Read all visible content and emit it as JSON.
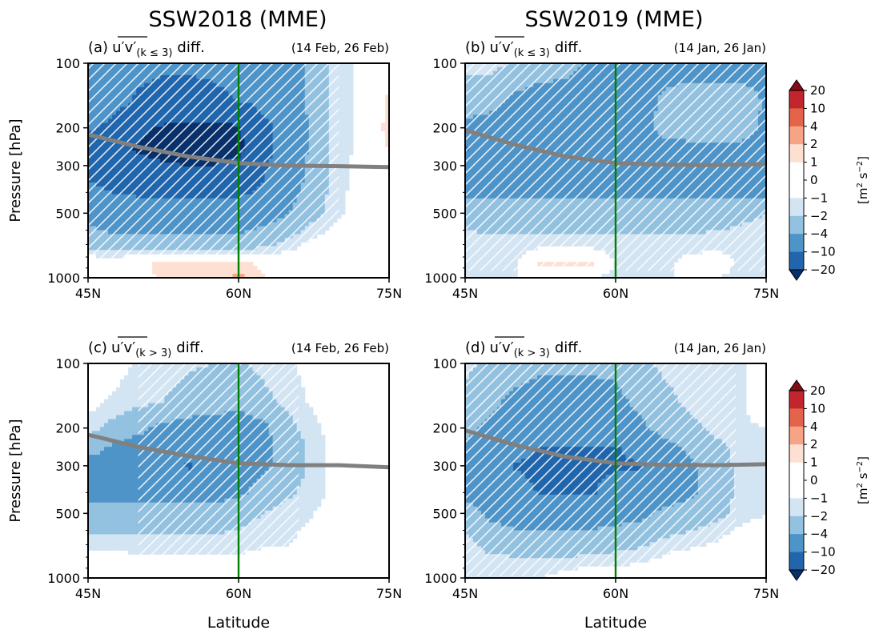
{
  "figure": {
    "column_titles": [
      "SSW2018 (MME)",
      "SSW2019 (MME)"
    ],
    "ylabel": "Pressure [hPa]",
    "xlabel": "Latitude",
    "colorbar": {
      "label_base": "[m",
      "label_sup1": "2",
      "label_mid": " s",
      "label_sup2": "−2",
      "label_end": "]",
      "ticks": [
        "20",
        "10",
        "4",
        "2",
        "1",
        "0",
        "−1",
        "−2",
        "−4",
        "−10",
        "−20"
      ],
      "levels": [
        -20,
        -10,
        -4,
        -2,
        -1,
        1,
        2,
        4,
        10,
        20
      ],
      "colors": {
        "below_m20": "#08306b",
        "m20_m10": "#2166ac",
        "m10_m4": "#4e94c8",
        "m4_m2": "#93c1e0",
        "m2_m1": "#d3e4f3",
        "m1_1": "#ffffff",
        "p1_2": "#fde0d2",
        "p2_4": "#f7a486",
        "p4_10": "#e4634b",
        "p10_20": "#c0262c",
        "above_20": "#850b16"
      }
    }
  },
  "chart_data": [
    {
      "type": "heatmap",
      "panel": "(a)",
      "title_prefix": "(a)",
      "title_quantity": "u′v′",
      "title_subscript": "(k ≤ 3)",
      "title_suffix": "diff.",
      "dates": "(14 Feb, 26 Feb)",
      "xticks": [
        "45N",
        "60N",
        "75N"
      ],
      "yticks": [
        "100",
        "200",
        "300",
        "500",
        "1000"
      ],
      "xlim": [
        45,
        75
      ],
      "ylim": [
        1000,
        100
      ],
      "yscale": "log",
      "vertical_line_lat": 60,
      "jet_line": {
        "lat": [
          45,
          50,
          55,
          60,
          65,
          70,
          75
        ],
        "p": [
          215,
          245,
          272,
          292,
          300,
          302,
          305
        ]
      },
      "field_lat": [
        45,
        47.5,
        50,
        52.5,
        55,
        57.5,
        60,
        62.5,
        65,
        67.5,
        70,
        72.5,
        75
      ],
      "field_p": [
        100,
        150,
        200,
        250,
        300,
        400,
        500,
        700,
        850,
        1000
      ],
      "field_values": [
        [
          -4,
          -6,
          -8,
          -9,
          -9,
          -9,
          -8,
          -7,
          -6,
          -3,
          -1.5,
          -0.5,
          0
        ],
        [
          -5,
          -7,
          -11,
          -12,
          -12,
          -11,
          -10,
          -8,
          -6,
          -3,
          -1.5,
          -0.5,
          1.3
        ],
        [
          -9,
          -12,
          -18,
          -21,
          -22,
          -22,
          -21,
          -12,
          -7,
          -3,
          -1.5,
          -0.5,
          1.5
        ],
        [
          -13,
          -16,
          -21,
          -23,
          -24,
          -24,
          -22,
          -12,
          -7,
          -3,
          -1.5,
          -0.5,
          1.1
        ],
        [
          -11,
          -13,
          -17,
          -19,
          -20,
          -20,
          -18,
          -11,
          -6,
          -3,
          -1.5,
          -0.4,
          0
        ],
        [
          -9,
          -10,
          -11,
          -11,
          -11,
          -11,
          -11,
          -9,
          -5,
          -2.8,
          -1.3,
          -0.3,
          0
        ],
        [
          -5,
          -6,
          -6,
          -6,
          -6,
          -6,
          -6,
          -5,
          -4,
          -2.5,
          -1.2,
          -0.3,
          0
        ],
        [
          -2.5,
          -3,
          -3.2,
          -3.2,
          -3.2,
          -3.2,
          -3,
          -2.5,
          -1.5,
          -0.5,
          0,
          0,
          0
        ],
        [
          0,
          0,
          0.5,
          1.5,
          1.5,
          1.5,
          1.5,
          0.5,
          0,
          0,
          0,
          0,
          0
        ],
        [
          0,
          0,
          0.3,
          1.3,
          1.3,
          1.3,
          2.3,
          1.2,
          0,
          0,
          0,
          0,
          0
        ]
      ],
      "hatch_lat": [
        45,
        70
      ],
      "hatch_p": [
        100,
        830
      ]
    },
    {
      "type": "heatmap",
      "panel": "(b)",
      "title_prefix": "(b)",
      "title_quantity": "u′v′",
      "title_subscript": "(k ≤ 3)",
      "title_suffix": "diff.",
      "dates": "(14 Jan, 26 Jan)",
      "xticks": [
        "45N",
        "60N",
        "75N"
      ],
      "yticks": [
        "100",
        "200",
        "300",
        "500",
        "1000"
      ],
      "xlim": [
        45,
        75
      ],
      "ylim": [
        1000,
        100
      ],
      "yscale": "log",
      "vertical_line_lat": 60,
      "jet_line": {
        "lat": [
          45,
          50,
          55,
          60,
          65,
          70,
          75
        ],
        "p": [
          205,
          240,
          272,
          292,
          297,
          298,
          295
        ]
      },
      "field_lat": [
        45,
        47.5,
        50,
        52.5,
        55,
        57.5,
        60,
        62.5,
        65,
        67.5,
        70,
        72.5,
        75
      ],
      "field_p": [
        100,
        150,
        200,
        250,
        300,
        400,
        500,
        700,
        850,
        1000
      ],
      "field_values": [
        [
          -1.5,
          -1.5,
          -2.2,
          -3,
          -3.2,
          -4.5,
          -5,
          -5,
          -5,
          -5,
          -5,
          -5,
          -5
        ],
        [
          -3,
          -3.2,
          -4.5,
          -5,
          -5,
          -5,
          -5,
          -5,
          -3.5,
          -3,
          -3,
          -3,
          -4.2
        ],
        [
          -4.5,
          -5,
          -5,
          -5,
          -5,
          -5,
          -5,
          -5,
          -3,
          -3,
          -3,
          -3,
          -4.5
        ],
        [
          -11,
          -6,
          -5,
          -5,
          -5,
          -5,
          -5,
          -5,
          -5,
          -4.5,
          -4.5,
          -4.5,
          -5
        ],
        [
          -6,
          -5,
          -5,
          -5,
          -5,
          -5,
          -5,
          -5,
          -5,
          -5,
          -5,
          -5,
          -5
        ],
        [
          -4.5,
          -4.5,
          -4.5,
          -4.5,
          -4.5,
          -4.5,
          -4.5,
          -4.5,
          -4.5,
          -4.5,
          -4.5,
          -4.5,
          -4.5
        ],
        [
          -2.5,
          -3,
          -3,
          -3,
          -3,
          -3,
          -3,
          -3,
          -3,
          -3,
          -3,
          -2.5,
          -2
        ],
        [
          -1.5,
          -1.5,
          -1.5,
          -1.5,
          -1.5,
          -1.5,
          -1.5,
          -1.5,
          -1.5,
          -1.5,
          -1.2,
          -1.2,
          -1
        ],
        [
          -1.2,
          -1.2,
          -1.2,
          1.4,
          1.4,
          1.4,
          -1.2,
          -1.2,
          -1.2,
          -0.5,
          -0.5,
          -1.2,
          -1
        ],
        [
          -1,
          -1,
          -1,
          -1,
          -1.2,
          -1.2,
          -1.2,
          -1.2,
          -1,
          -1,
          -1,
          -1.2,
          -1
        ]
      ],
      "hatch_lat": [
        45,
        75
      ],
      "hatch_p": [
        100,
        930
      ]
    },
    {
      "type": "heatmap",
      "panel": "(c)",
      "title_prefix": "(c)",
      "title_quantity": "u′v′",
      "title_subscript": "(k > 3)",
      "title_suffix": "diff.",
      "dates": "(14 Feb, 26 Feb)",
      "xticks": [
        "45N",
        "60N",
        "75N"
      ],
      "yticks": [
        "100",
        "200",
        "300",
        "500",
        "1000"
      ],
      "xlim": [
        45,
        75
      ],
      "ylim": [
        1000,
        100
      ],
      "yscale": "log",
      "vertical_line_lat": 60,
      "jet_line": {
        "lat": [
          45,
          50,
          55,
          60,
          65,
          70,
          75
        ],
        "p": [
          215,
          245,
          270,
          292,
          298,
          298,
          305
        ]
      },
      "field_lat": [
        45,
        47.5,
        50,
        52.5,
        55,
        57.5,
        60,
        62.5,
        65,
        67.5,
        70,
        72.5,
        75
      ],
      "field_p": [
        100,
        150,
        200,
        250,
        300,
        400,
        500,
        700,
        850,
        1000
      ],
      "field_values": [
        [
          0,
          -0.5,
          -1.2,
          -1.5,
          -1.8,
          -2,
          -2.2,
          -1.5,
          -1.2,
          -0.5,
          0,
          0,
          0
        ],
        [
          -0.5,
          -1.2,
          -1.5,
          -2,
          -2.5,
          -3,
          -3.5,
          -2.5,
          -1.5,
          -0.8,
          0,
          0,
          0
        ],
        [
          -1.5,
          -2.5,
          -3.5,
          -4.5,
          -5,
          -5,
          -5,
          -4.5,
          -2.5,
          -1.2,
          -0.5,
          0,
          0
        ],
        [
          -3,
          -4.5,
          -5,
          -5,
          -5.5,
          -5.5,
          -5,
          -4.5,
          -3,
          -1.5,
          -0.5,
          0,
          0
        ],
        [
          -5,
          -5,
          -5,
          -6,
          -11,
          -7,
          -5,
          -4.5,
          -3,
          -1.5,
          -0.5,
          0,
          0
        ],
        [
          -5,
          -5,
          -5,
          -5,
          -5,
          -5,
          -4.5,
          -3,
          -2.2,
          -1.5,
          -0.5,
          0,
          0
        ],
        [
          -3,
          -3,
          -3,
          -3,
          -3.2,
          -3,
          -2.5,
          -2,
          -1.5,
          -1,
          0,
          0,
          0
        ],
        [
          -1.5,
          -1.5,
          -1.5,
          -1.5,
          -1.5,
          -1.5,
          -1.5,
          -1.2,
          -1,
          -0.5,
          0,
          0,
          0
        ],
        [
          0,
          0,
          -0.5,
          -0.5,
          -0.5,
          -0.5,
          -0.5,
          0,
          0,
          0,
          0,
          0,
          0
        ],
        [
          0,
          0,
          0,
          0,
          0,
          0,
          0,
          0,
          0,
          0,
          0,
          0,
          0
        ]
      ],
      "hatch_lat": [
        50,
        66
      ],
      "hatch_p": [
        100,
        790
      ]
    },
    {
      "type": "heatmap",
      "panel": "(d)",
      "title_prefix": "(d)",
      "title_quantity": "u′v′",
      "title_subscript": "(k > 3)",
      "title_suffix": "diff.",
      "dates": "(14 Jan, 26 Jan)",
      "xticks": [
        "45N",
        "60N",
        "75N"
      ],
      "yticks": [
        "100",
        "200",
        "300",
        "500",
        "1000"
      ],
      "xlim": [
        45,
        75
      ],
      "ylim": [
        1000,
        100
      ],
      "yscale": "log",
      "vertical_line_lat": 60,
      "jet_line": {
        "lat": [
          45,
          50,
          55,
          60,
          65,
          70,
          75
        ],
        "p": [
          205,
          240,
          272,
          292,
          297,
          298,
          295
        ]
      },
      "field_lat": [
        45,
        47.5,
        50,
        52.5,
        55,
        57.5,
        60,
        62.5,
        65,
        67.5,
        70,
        72.5,
        75
      ],
      "field_p": [
        100,
        150,
        200,
        250,
        300,
        400,
        500,
        700,
        850,
        1000
      ],
      "field_values": [
        [
          -1.5,
          -2.5,
          -3,
          -3.5,
          -3.5,
          -3.5,
          -3.5,
          -2.5,
          -1.5,
          -1.5,
          -1.2,
          -1.2,
          0
        ],
        [
          -2.5,
          -3.5,
          -4.5,
          -5,
          -5,
          -5,
          -4.5,
          -3.5,
          -2.5,
          -1.5,
          -1.2,
          -1.2,
          0
        ],
        [
          -3.5,
          -4.5,
          -5,
          -5,
          -5.5,
          -5.5,
          -5,
          -4.5,
          -3,
          -2.5,
          -1.5,
          -1.2,
          -1
        ],
        [
          -4.5,
          -5,
          -5.5,
          -11,
          -11,
          -11,
          -11,
          -6,
          -5,
          -3.5,
          -2.5,
          -1.5,
          -1.2
        ],
        [
          -4.5,
          -5,
          -11,
          -12,
          -12,
          -12,
          -11,
          -11,
          -5,
          -4.5,
          -3,
          -1.5,
          -1.2
        ],
        [
          -4.5,
          -5,
          -5.5,
          -11,
          -11,
          -11,
          -6,
          -5,
          -5,
          -4.5,
          -3,
          -1.5,
          -1.2
        ],
        [
          -3,
          -4.5,
          -5,
          -5,
          -5,
          -5,
          -5,
          -4.5,
          -3.5,
          -3,
          -2.5,
          -1.5,
          -1
        ],
        [
          -1.5,
          -2.5,
          -3,
          -3.2,
          -3.2,
          -3,
          -2.5,
          -2.2,
          -1.5,
          -1.2,
          -0.8,
          0,
          0
        ],
        [
          -1.2,
          -1.5,
          -1.5,
          -1.5,
          -1.5,
          -1.2,
          -1.2,
          -1,
          -0.5,
          0,
          0,
          0,
          0
        ],
        [
          -1,
          -1,
          -1,
          -1,
          -0.5,
          0,
          0,
          0,
          0,
          0,
          0,
          0,
          0
        ]
      ],
      "hatch_lat": [
        45,
        72
      ],
      "hatch_p": [
        100,
        980
      ]
    }
  ]
}
